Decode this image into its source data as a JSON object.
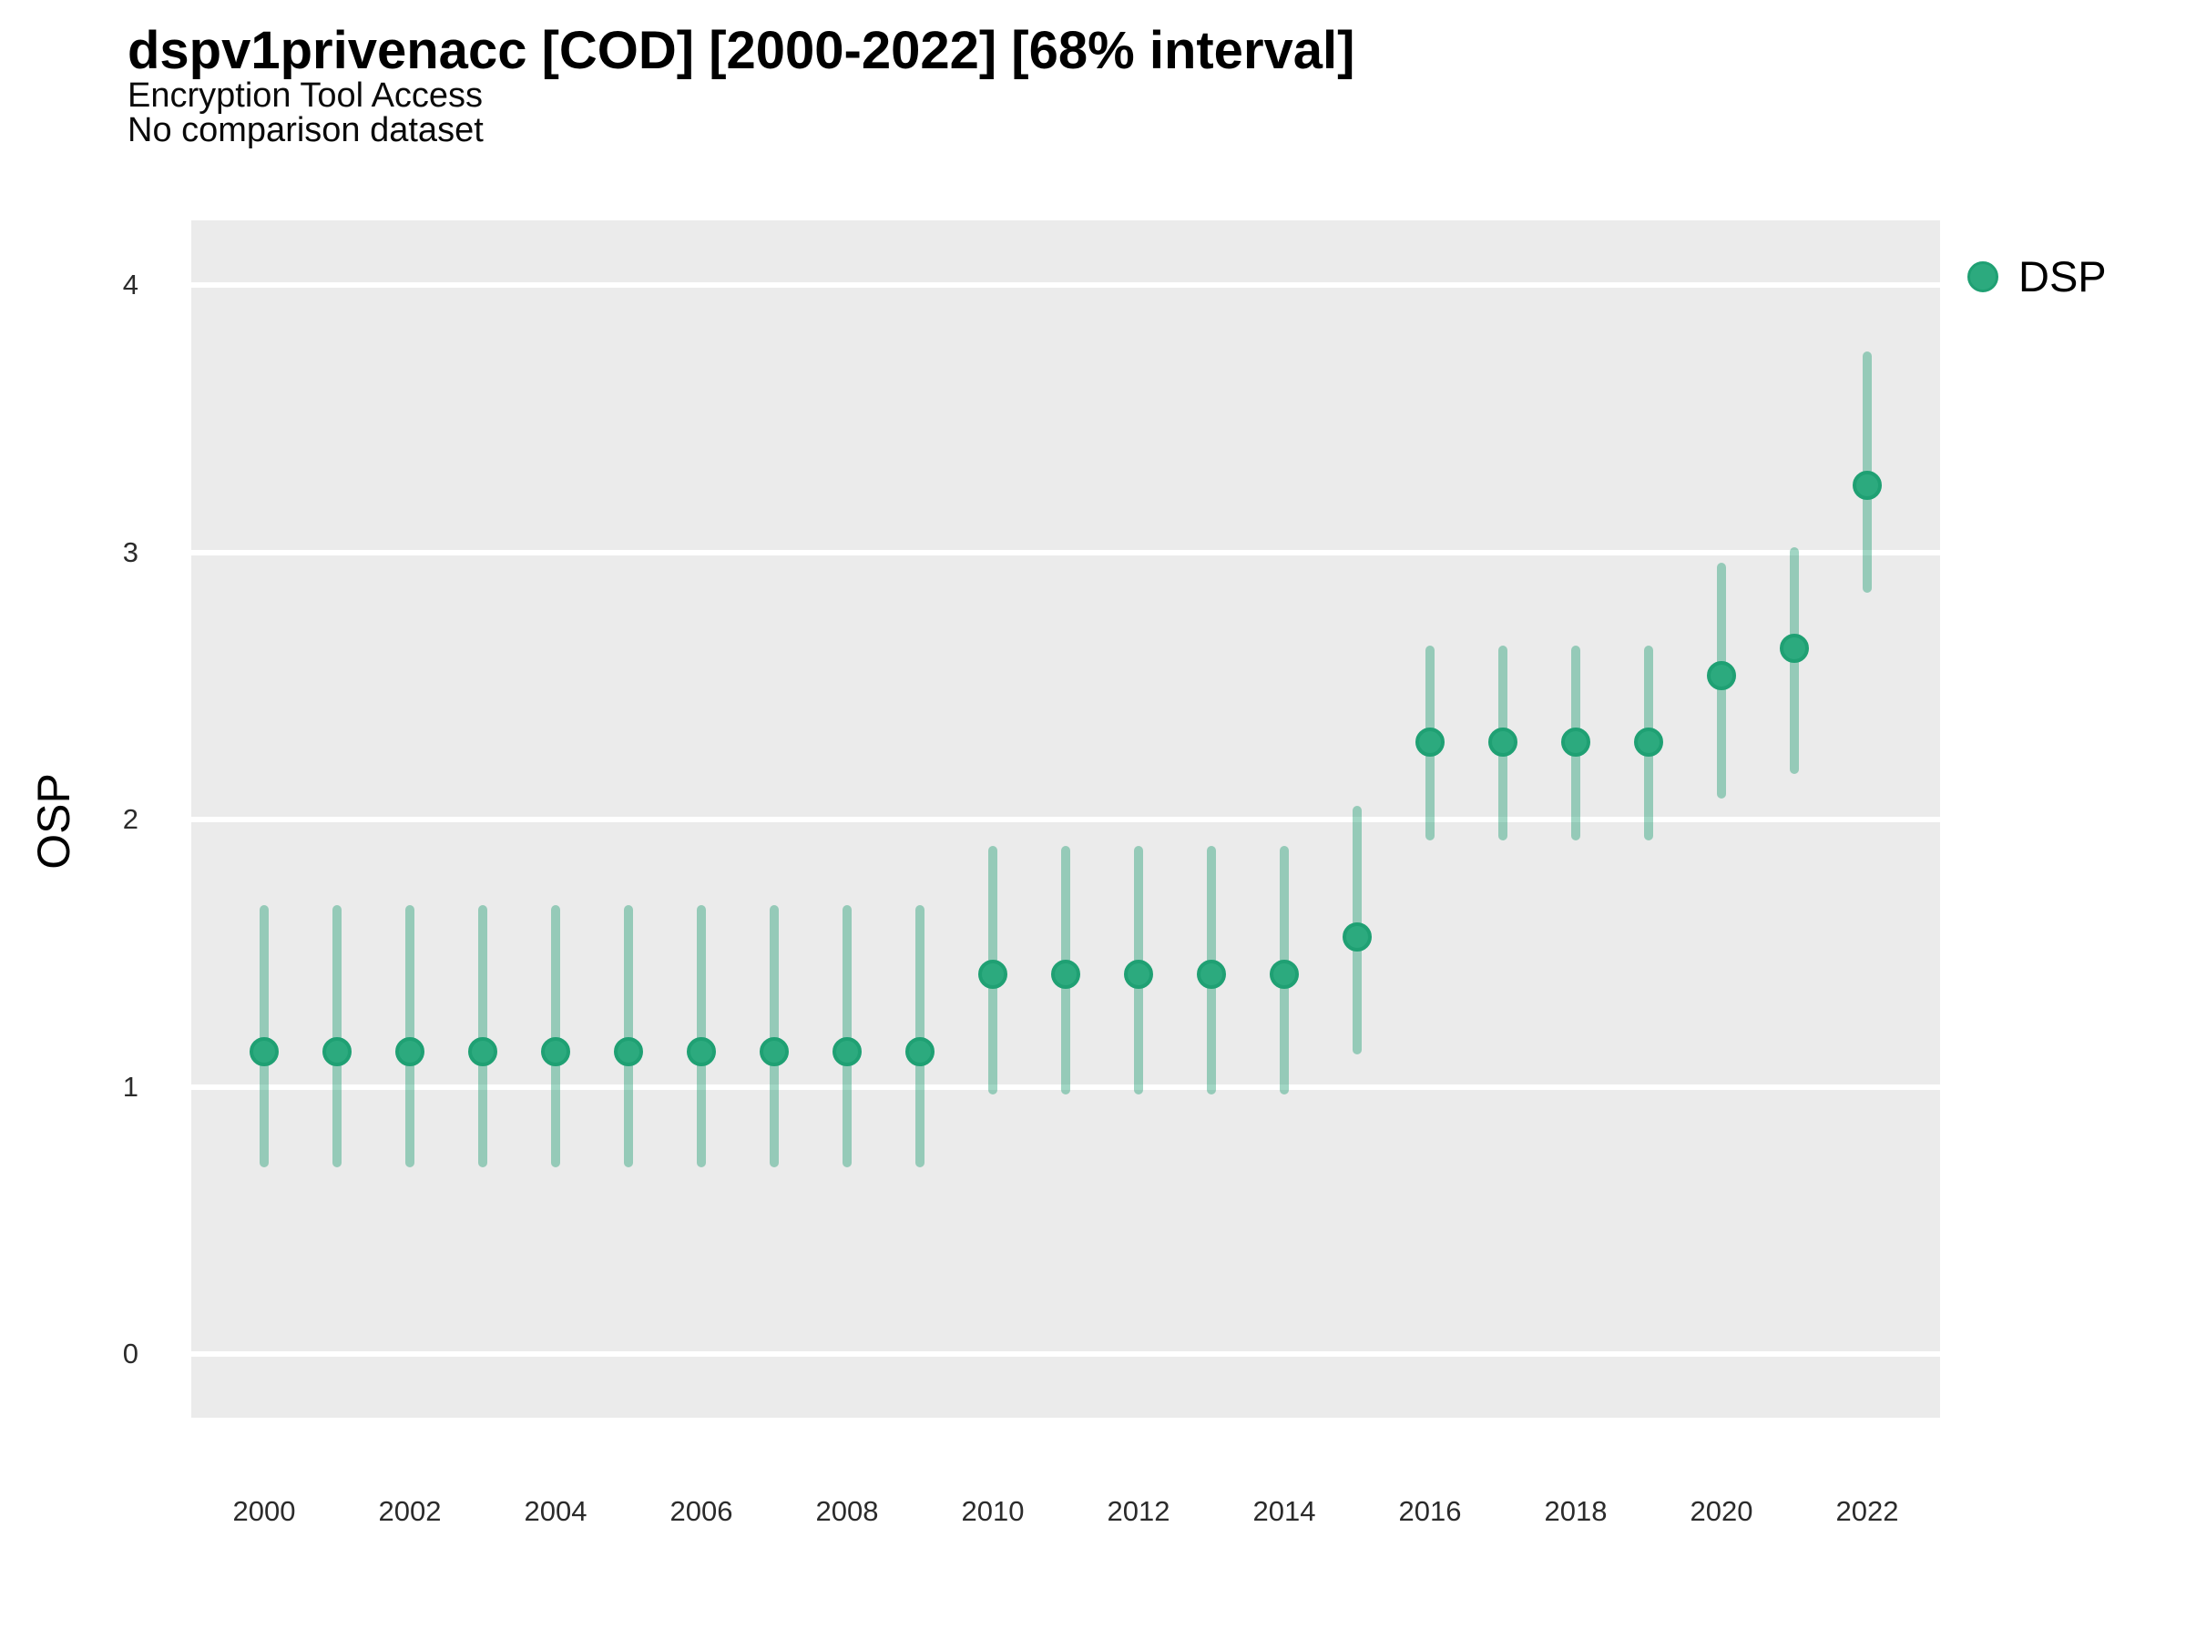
{
  "header": {
    "title": "dspv1privenacc [COD] [2000-2022] [68% interval]",
    "subtitle": "Encryption Tool Access",
    "dataset_note": "No comparison dataset"
  },
  "y_axis": {
    "label": "OSP",
    "ticks": [
      0,
      1,
      2,
      3,
      4
    ]
  },
  "x_axis": {
    "ticks": [
      2000,
      2002,
      2004,
      2006,
      2008,
      2010,
      2012,
      2014,
      2016,
      2018,
      2020,
      2022
    ]
  },
  "legend": {
    "items": [
      {
        "label": "DSP",
        "marker_color": "#2CAA7E"
      }
    ]
  },
  "colors": {
    "page_background": "#FFFFFF",
    "panel_background": "#EBEBEB",
    "gridline": "#FFFFFF",
    "marker_fill": "#2CAA7E",
    "marker_border": "#1FA073",
    "interval_bar": "rgba(30,158,114,0.42)",
    "title_text": "#000000",
    "tick_text": "#2B2B2B"
  },
  "chart_data": {
    "type": "scatter",
    "title": "dspv1privenacc [COD] [2000-2022] [68% interval]",
    "subtitle": "Encryption Tool Access",
    "note": "No comparison dataset",
    "xlabel": "",
    "ylabel": "OSP",
    "interval_level": "68%",
    "legend_position": "right",
    "grid": "major-horizontal",
    "xlim": [
      1999,
      2023
    ],
    "ylim": [
      -0.24,
      4.24
    ],
    "y_gridlines": [
      0,
      1,
      2,
      3,
      4
    ],
    "series": [
      {
        "name": "DSP",
        "points": [
          {
            "year": 2000,
            "value": 1.13,
            "lo": 0.7,
            "hi": 1.68
          },
          {
            "year": 2001,
            "value": 1.13,
            "lo": 0.7,
            "hi": 1.68
          },
          {
            "year": 2002,
            "value": 1.13,
            "lo": 0.7,
            "hi": 1.68
          },
          {
            "year": 2003,
            "value": 1.13,
            "lo": 0.7,
            "hi": 1.68
          },
          {
            "year": 2004,
            "value": 1.13,
            "lo": 0.7,
            "hi": 1.68
          },
          {
            "year": 2005,
            "value": 1.13,
            "lo": 0.7,
            "hi": 1.68
          },
          {
            "year": 2006,
            "value": 1.13,
            "lo": 0.7,
            "hi": 1.68
          },
          {
            "year": 2007,
            "value": 1.13,
            "lo": 0.7,
            "hi": 1.68
          },
          {
            "year": 2008,
            "value": 1.13,
            "lo": 0.7,
            "hi": 1.68
          },
          {
            "year": 2009,
            "value": 1.13,
            "lo": 0.7,
            "hi": 1.68
          },
          {
            "year": 2010,
            "value": 1.42,
            "lo": 0.97,
            "hi": 1.9
          },
          {
            "year": 2011,
            "value": 1.42,
            "lo": 0.97,
            "hi": 1.9
          },
          {
            "year": 2012,
            "value": 1.42,
            "lo": 0.97,
            "hi": 1.9
          },
          {
            "year": 2013,
            "value": 1.42,
            "lo": 0.97,
            "hi": 1.9
          },
          {
            "year": 2014,
            "value": 1.42,
            "lo": 0.97,
            "hi": 1.9
          },
          {
            "year": 2015,
            "value": 1.56,
            "lo": 1.12,
            "hi": 2.05
          },
          {
            "year": 2016,
            "value": 2.29,
            "lo": 1.92,
            "hi": 2.65
          },
          {
            "year": 2017,
            "value": 2.29,
            "lo": 1.92,
            "hi": 2.65
          },
          {
            "year": 2018,
            "value": 2.29,
            "lo": 1.92,
            "hi": 2.65
          },
          {
            "year": 2019,
            "value": 2.29,
            "lo": 1.92,
            "hi": 2.65
          },
          {
            "year": 2020,
            "value": 2.54,
            "lo": 2.08,
            "hi": 2.96
          },
          {
            "year": 2021,
            "value": 2.64,
            "lo": 2.17,
            "hi": 3.02
          },
          {
            "year": 2022,
            "value": 3.25,
            "lo": 2.85,
            "hi": 3.75
          }
        ]
      }
    ]
  }
}
